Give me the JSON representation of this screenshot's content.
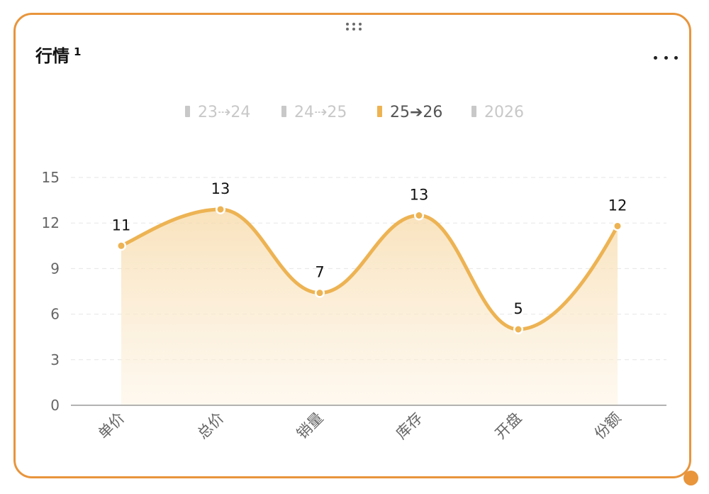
{
  "widget": {
    "title": "行情",
    "title_sup": "1",
    "more_icon": "more-horizontal-icon",
    "drag_icon": "drag-handle-icon"
  },
  "colors": {
    "accent": "#EDB353",
    "border": "#E8953C",
    "legend_inactive": "#c8c8c8",
    "legend_active_text": "#555555",
    "grid": "#e6e6e6",
    "axis_text": "#666666"
  },
  "chart_data": {
    "type": "area",
    "smooth": true,
    "legend": [
      {
        "name": "23⇢24",
        "active": false
      },
      {
        "name": "24⇢25",
        "active": false
      },
      {
        "name": "25➔26",
        "active": true
      },
      {
        "name": "2026",
        "active": false
      }
    ],
    "legend_position": "top-center",
    "categories": [
      "单价",
      "总价",
      "销量",
      "库存",
      "开盘",
      "份额"
    ],
    "series": [
      {
        "name": "25➔26",
        "values": [
          10.5,
          12.9,
          7.4,
          12.5,
          5.0,
          11.8
        ],
        "labels": [
          "11",
          "13",
          "7",
          "13",
          "5",
          "12"
        ]
      }
    ],
    "y_ticks": [
      "0",
      "3",
      "6",
      "9",
      "12",
      "15"
    ],
    "ylim": [
      0,
      15
    ],
    "grid": "horizontal-dashed",
    "x_label_rotation": -45
  }
}
